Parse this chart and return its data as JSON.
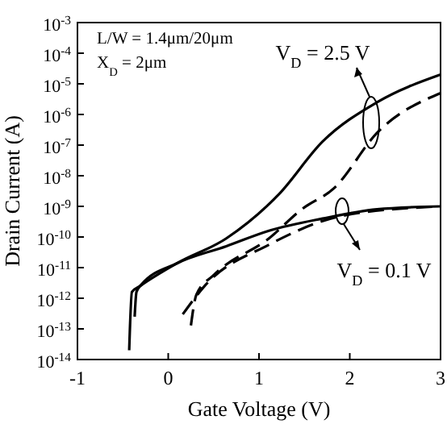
{
  "chart_data": {
    "type": "line",
    "xlabel": "Gate Voltage (V)",
    "ylabel": "Drain Current (A)",
    "log": "y",
    "xlim": [
      -1,
      3
    ],
    "xticks": [
      -1,
      0,
      1,
      2,
      3
    ],
    "ylim": [
      1e-14,
      0.001
    ],
    "yticks": [
      {
        "value": 1e-14,
        "label": "10$^{-14}$"
      },
      {
        "value": 1e-13,
        "label": "10$^{-13}$"
      },
      {
        "value": 1e-12,
        "label": "10$^{-12}$"
      },
      {
        "value": 1e-11,
        "label": "10$^{-11}$"
      },
      {
        "value": 1e-10,
        "label": "10$^{-10}$"
      },
      {
        "value": 1e-09,
        "label": "10$^{-9}$"
      },
      {
        "value": 1e-08,
        "label": "10$^{-8}$"
      },
      {
        "value": 1e-07,
        "label": "10$^{-7}$"
      },
      {
        "value": 1e-06,
        "label": "10$^{-6}$"
      },
      {
        "value": 1e-05,
        "label": "10$^{-5}$"
      },
      {
        "value": 0.0001,
        "label": "10$^{-4}$"
      },
      {
        "value": 0.001,
        "label": "10$^{-3}$"
      }
    ],
    "grid": false,
    "marker": "none",
    "annotations": [
      "L/W = 1.4μm/20μm",
      "X$_{D}$ = 2μm",
      "V$_{D}$ = 2.5 V",
      "V$_{D}$ = 0.1 V"
    ],
    "series": [
      {
        "color": "#000000",
        "line_style": "solid",
        "x": [
          -0.43,
          -0.4,
          -0.31,
          0.1,
          0.64,
          1.22,
          1.7,
          2.3,
          3
        ],
        "values": [
          2e-14,
          1.6e-12,
          2.5e-12,
          1.4e-11,
          9e-11,
          2.5e-09,
          1.3e-07,
          2.5e-06,
          2e-05
        ]
      },
      {
        "color": "#000000",
        "line_style": "dashed",
        "x": [
          0.25,
          0.31,
          0.51,
          1.11,
          1.47,
          1.83,
          2.3,
          3
        ],
        "values": [
          1.3e-13,
          1.3e-12,
          6e-12,
          9e-11,
          8e-10,
          4e-09,
          2.5e-07,
          5e-06
        ]
      },
      {
        "color": "#000000",
        "line_style": "solid",
        "x": [
          -0.37,
          -0.35,
          -0.3,
          0.1,
          0.64,
          1.11,
          1.7,
          2.3,
          3
        ],
        "values": [
          2.5e-13,
          1.6e-12,
          2.7e-12,
          1.4e-11,
          5e-11,
          1.6e-10,
          4e-10,
          8e-10,
          1e-09
        ]
      },
      {
        "color": "#000000",
        "line_style": "dashed",
        "x": [
          0.16,
          0.4,
          1.11,
          1.93,
          3
        ],
        "values": [
          3e-13,
          2.5e-12,
          5.6e-11,
          5e-10,
          1e-09
        ]
      }
    ]
  }
}
